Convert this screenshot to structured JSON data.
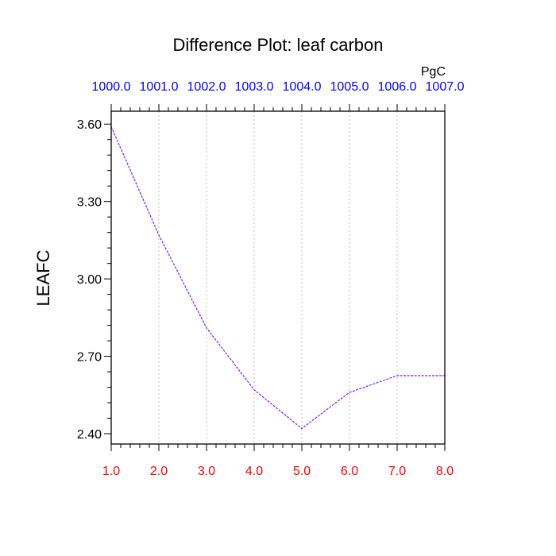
{
  "chart_data": {
    "type": "line",
    "title": "Difference Plot: leaf carbon",
    "unit_label": "PgC",
    "ylabel": "LEAFC",
    "xlabel": "",
    "x": [
      1.0,
      2.0,
      3.0,
      4.0,
      5.0,
      6.0,
      7.0,
      8.0
    ],
    "x_tick_labels": [
      "1.0",
      "2.0",
      "3.0",
      "4.0",
      "5.0",
      "6.0",
      "7.0",
      "8.0"
    ],
    "top_tick_labels": [
      "1000.0",
      "1001.0",
      "1002.0",
      "1003.0",
      "1004.0",
      "1005.0",
      "1006.0",
      "1007.0"
    ],
    "y_tick_values": [
      2.4,
      2.7,
      3.0,
      3.3,
      3.6
    ],
    "y_tick_labels": [
      "2.40",
      "2.70",
      "3.00",
      "3.30",
      "3.60"
    ],
    "series": [
      {
        "values": [
          3.59,
          3.17,
          2.81,
          2.57,
          2.42,
          2.56,
          2.625,
          2.625
        ]
      }
    ],
    "xlim": [
      1.0,
      8.0
    ],
    "ylim": [
      2.36,
      3.65
    ],
    "grid": "vertical dotted",
    "colors": {
      "line": "#7a00ff",
      "bottom_ticks": "#ff0000",
      "top_ticks": "#0000ff",
      "grid": "#bbbbbb",
      "axis": "#000000"
    }
  }
}
